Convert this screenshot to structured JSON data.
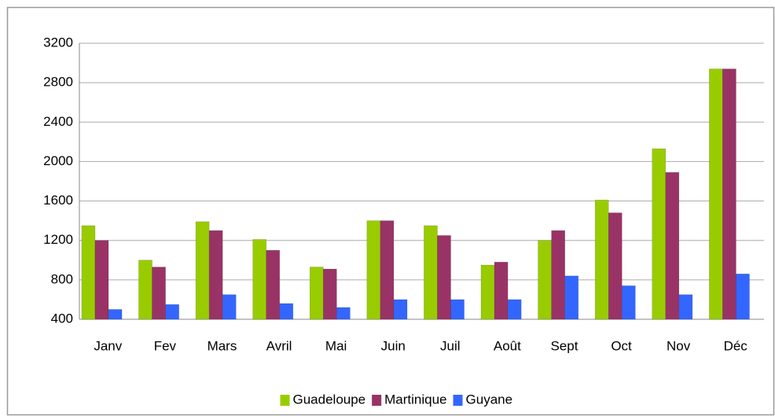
{
  "chart_data": {
    "type": "bar",
    "categories": [
      "Janv",
      "Fev",
      "Mars",
      "Avril",
      "Mai",
      "Juin",
      "Juil",
      "Août",
      "Sept",
      "Oct",
      "Nov",
      "Déc"
    ],
    "series": [
      {
        "name": "Guadeloupe",
        "color": "#99cc00",
        "values": [
          1350,
          1000,
          1390,
          1210,
          930,
          1400,
          1350,
          950,
          1200,
          1610,
          2130,
          2940
        ]
      },
      {
        "name": "Martinique",
        "color": "#993366",
        "values": [
          1200,
          930,
          1300,
          1100,
          910,
          1400,
          1250,
          980,
          1300,
          1480,
          1890,
          2940
        ]
      },
      {
        "name": "Guyane",
        "color": "#3366ff",
        "values": [
          500,
          550,
          650,
          560,
          520,
          600,
          600,
          600,
          840,
          740,
          650,
          860
        ]
      }
    ],
    "ylim": [
      400,
      3200
    ],
    "yticks": [
      400,
      800,
      1200,
      1600,
      2000,
      2400,
      2800,
      3200
    ],
    "grid": true,
    "legend": "bottom"
  }
}
